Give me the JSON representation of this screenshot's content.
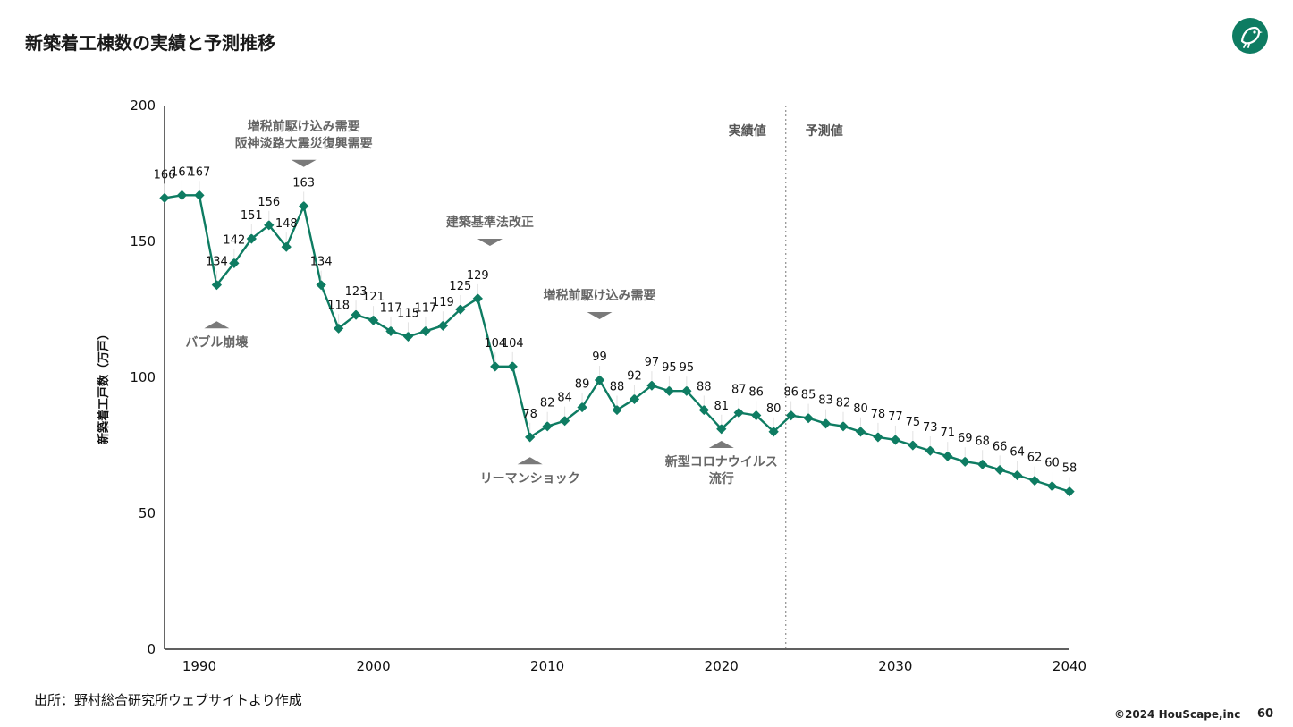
{
  "header": {
    "title": "新築着工棟数の実績と予測推移"
  },
  "footer": {
    "source": "出所：野村総合研究所ウェブサイトより作成",
    "copyright": "©2024 HouScape,inc",
    "page_number": "60"
  },
  "colors": {
    "series": "#0e7c62",
    "logo_bg": "#0e7c62",
    "annotation": "#7a7a7a",
    "axis": "#000000"
  },
  "chart_data": {
    "type": "line",
    "title": "",
    "xlabel": "",
    "ylabel": "新築着工戸数（万戸）",
    "xlim": [
      1988,
      2040
    ],
    "ylim": [
      0,
      200
    ],
    "x_ticks": [
      1990,
      2000,
      2010,
      2020,
      2030,
      2040
    ],
    "y_ticks": [
      0,
      50,
      100,
      150,
      200
    ],
    "grid": false,
    "divider_year": 2023.7,
    "region_labels": {
      "actual": "実績値",
      "forecast": "予測値"
    },
    "series": [
      {
        "x": [
          1988,
          1989,
          1990,
          1991,
          1992,
          1993,
          1994,
          1995,
          1996,
          1997,
          1998,
          1999,
          2000,
          2001,
          2002,
          2003,
          2004,
          2005,
          2006,
          2007,
          2008,
          2009,
          2010,
          2011,
          2012,
          2013,
          2014,
          2015,
          2016,
          2017,
          2018,
          2019,
          2020,
          2021,
          2022,
          2023,
          2024,
          2025,
          2026,
          2027,
          2028,
          2029,
          2030,
          2031,
          2032,
          2033,
          2034,
          2035,
          2036,
          2037,
          2038,
          2039,
          2040
        ],
        "values": [
          166,
          167,
          167,
          134,
          142,
          151,
          156,
          148,
          163,
          134,
          118,
          123,
          121,
          117,
          115,
          117,
          119,
          125,
          129,
          104,
          104,
          78,
          82,
          84,
          89,
          99,
          88,
          92,
          97,
          95,
          95,
          88,
          81,
          87,
          86,
          80,
          86,
          85,
          83,
          82,
          80,
          78,
          77,
          75,
          73,
          71,
          69,
          68,
          66,
          64,
          62,
          60,
          58
        ],
        "labels": [
          "166",
          "167",
          "167",
          "134",
          "142",
          "151",
          "156",
          "148",
          "163",
          "134",
          "118",
          "123",
          "121",
          "117",
          "115",
          "117",
          "119",
          "125",
          "129",
          "104",
          "104",
          "78",
          "82",
          "84",
          "89",
          "99",
          "88",
          "92",
          "97",
          "95",
          "95",
          "88",
          "81",
          "87",
          "86",
          "80",
          "86",
          "85",
          "83",
          "82",
          "80",
          "78",
          "77",
          "75",
          "73",
          "71",
          "69",
          "68",
          "66",
          "64",
          "62",
          "60",
          "58"
        ]
      }
    ],
    "annotations": [
      {
        "lines": [
          "増税前駆け込み需要",
          "阪神淡路大震災復興需要"
        ],
        "x": 1996,
        "y": 180,
        "arrow": "down"
      },
      {
        "lines": [
          "バブル崩壊"
        ],
        "x": 1991,
        "y": 118,
        "arrow": "up"
      },
      {
        "lines": [
          "建築基準法改正"
        ],
        "x": 2006.7,
        "y": 151,
        "arrow": "down"
      },
      {
        "lines": [
          "増税前駆け込み需要"
        ],
        "x": 2013,
        "y": 124,
        "arrow": "down"
      },
      {
        "lines": [
          "リーマンショック"
        ],
        "x": 2009,
        "y": 68,
        "arrow": "up"
      },
      {
        "lines": [
          "新型コロナウイルス",
          "流行"
        ],
        "x": 2020,
        "y": 74,
        "arrow": "up"
      }
    ]
  }
}
